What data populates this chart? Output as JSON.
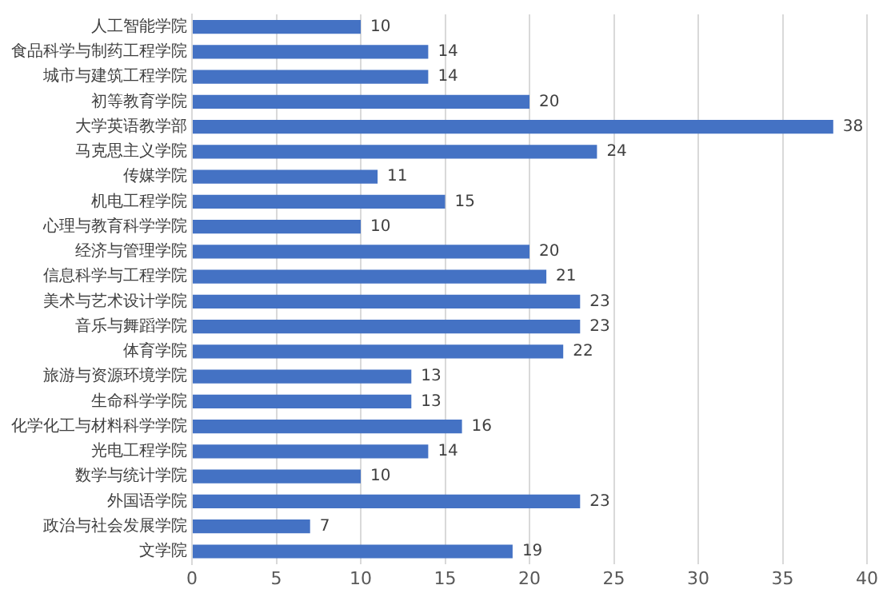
{
  "chart_data": {
    "type": "bar",
    "orientation": "horizontal",
    "categories": [
      "人工智能学院",
      "食品科学与制药工程学院",
      "城市与建筑工程学院",
      "初等教育学院",
      "大学英语教学部",
      "马克思主义学院",
      "传媒学院",
      "机电工程学院",
      "心理与教育科学学院",
      "经济与管理学院",
      "信息科学与工程学院",
      "美术与艺术设计学院",
      "音乐与舞蹈学院",
      "体育学院",
      "旅游与资源环境学院",
      "生命科学学院",
      "化学化工与材料科学学院",
      "光电工程学院",
      "数学与统计学院",
      "外国语学院",
      "政治与社会发展学院",
      "文学院"
    ],
    "values": [
      10,
      14,
      14,
      20,
      38,
      24,
      11,
      15,
      10,
      20,
      21,
      23,
      23,
      22,
      13,
      13,
      16,
      14,
      10,
      23,
      7,
      19
    ],
    "color": "#4472c4",
    "xlim": [
      0,
      40
    ],
    "xticks": [
      0,
      5,
      10,
      15,
      20,
      25,
      30,
      35,
      40
    ],
    "grid": "x",
    "data_labels": true
  }
}
